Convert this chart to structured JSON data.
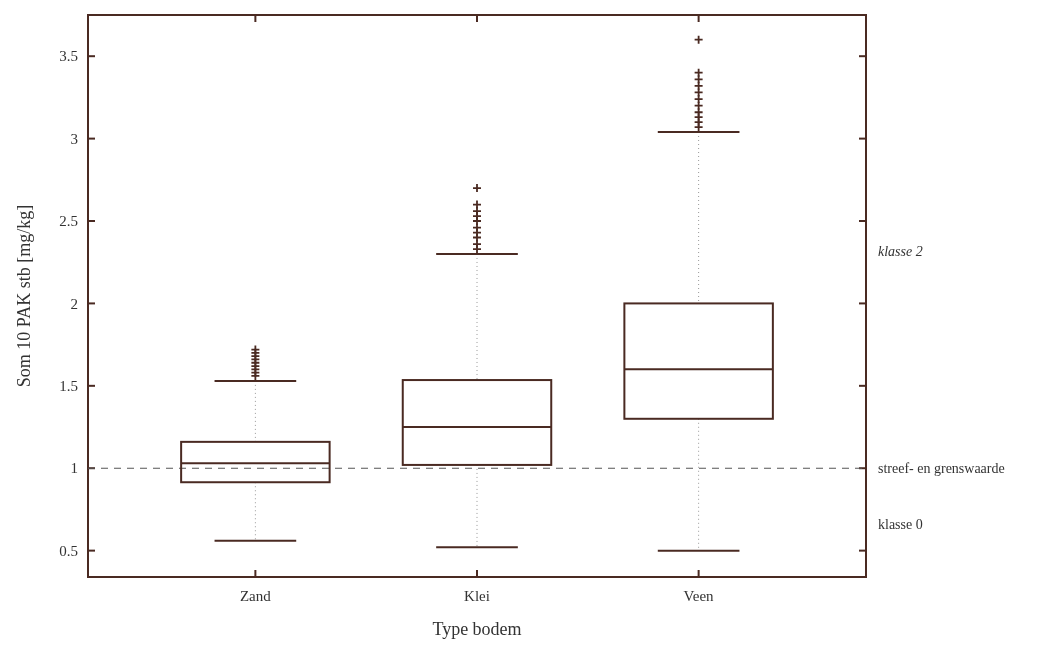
{
  "chart_data": {
    "type": "box",
    "xlabel": "Type bodem",
    "ylabel": "Som 10 PAK stb [mg/kg]",
    "categories": [
      "Zand",
      "Klei",
      "Veen"
    ],
    "boxes": [
      {
        "low": 0.56,
        "q1": 0.915,
        "median": 1.03,
        "q3": 1.16,
        "high": 1.53,
        "outliers": [
          1.56,
          1.58,
          1.6,
          1.62,
          1.64,
          1.66,
          1.68,
          1.7,
          1.72
        ]
      },
      {
        "low": 0.52,
        "q1": 1.02,
        "median": 1.25,
        "q3": 1.535,
        "high": 2.3,
        "outliers": [
          2.33,
          2.36,
          2.4,
          2.43,
          2.46,
          2.5,
          2.53,
          2.56,
          2.6,
          2.7
        ]
      },
      {
        "low": 0.5,
        "q1": 1.3,
        "median": 1.6,
        "q3": 2.0,
        "high": 3.04,
        "outliers": [
          3.07,
          3.1,
          3.13,
          3.16,
          3.2,
          3.24,
          3.28,
          3.32,
          3.36,
          3.4,
          3.6
        ]
      }
    ],
    "color": "#4a2a22",
    "marker": "cross",
    "ylim": [
      0.34,
      3.75
    ],
    "yticks": [
      0.5,
      1,
      1.5,
      2,
      2.5,
      3,
      3.5
    ],
    "ref_lines": [
      {
        "axis": "y",
        "value": 1,
        "label": "streef- en grenswaarde",
        "line_style": "dashed"
      }
    ],
    "annotations": [
      "klasse 2",
      "klasse 0"
    ]
  }
}
